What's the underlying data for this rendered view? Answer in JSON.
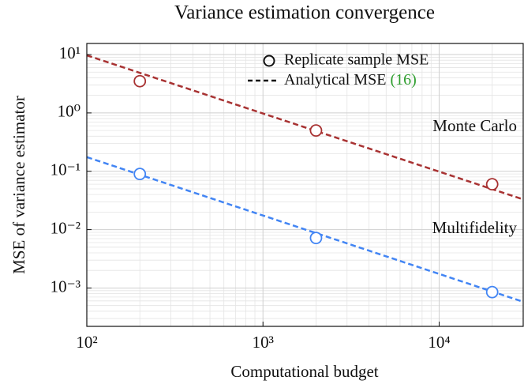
{
  "chart_data": {
    "type": "scatter",
    "title": "Variance estimation convergence",
    "x_label": "Computational budget",
    "y_label": "MSE of variance estimator",
    "x_scale": "log",
    "y_scale": "log",
    "grid": true,
    "xlim": [
      100,
      30000
    ],
    "ylim": [
      0.00022,
      15.5
    ],
    "xticks": [
      {
        "value": 100,
        "label": "10²"
      },
      {
        "value": 1000,
        "label": "10³"
      },
      {
        "value": 10000,
        "label": "10⁴"
      }
    ],
    "yticks": [
      {
        "value": 0.001,
        "label": "10⁻³"
      },
      {
        "value": 0.01,
        "label": "10⁻²"
      },
      {
        "value": 0.1,
        "label": "10⁻¹"
      },
      {
        "value": 1,
        "label": "10⁰"
      },
      {
        "value": 10,
        "label": "10¹"
      }
    ],
    "legend": [
      {
        "label": "Replicate sample MSE",
        "marker": "circle"
      },
      {
        "label": "Analytical MSE",
        "ref": "(16)",
        "ref_color": "#2e9e2e",
        "marker": "dashed"
      }
    ],
    "series": [
      {
        "name": "Monte Carlo",
        "color": "#a83232",
        "x": [
          200,
          2000,
          20000
        ],
        "values": [
          3.5,
          0.5,
          0.06
        ],
        "analytical": {
          "x": [
            100,
            30000
          ],
          "values": [
            9.7,
            0.033
          ]
        }
      },
      {
        "name": "Multifidelity",
        "color": "#4285f4",
        "x": [
          200,
          2000,
          20000
        ],
        "values": [
          0.09,
          0.0072,
          0.00085
        ],
        "analytical": {
          "x": [
            100,
            30000
          ],
          "values": [
            0.175,
            0.00058
          ]
        }
      }
    ]
  }
}
